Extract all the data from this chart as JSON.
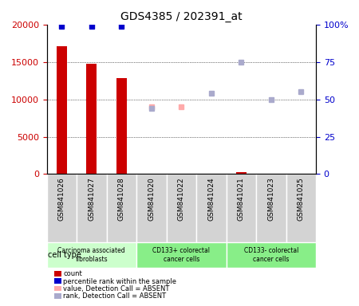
{
  "title": "GDS4385 / 202391_at",
  "samples": [
    "GSM841026",
    "GSM841027",
    "GSM841028",
    "GSM841020",
    "GSM841022",
    "GSM841024",
    "GSM841021",
    "GSM841023",
    "GSM841025"
  ],
  "count_values": [
    17100,
    14800,
    12800,
    50,
    80,
    60,
    250,
    70,
    60
  ],
  "percentile_values": [
    99,
    99,
    99,
    null,
    null,
    null,
    null,
    null,
    null
  ],
  "value_absent": [
    null,
    null,
    null,
    9000,
    9000,
    null,
    null,
    null,
    null
  ],
  "rank_absent": [
    null,
    null,
    null,
    44,
    null,
    54,
    75,
    50,
    55
  ],
  "count_colors": [
    "#cc0000",
    "#cc0000",
    "#cc0000",
    "#cc0000",
    "#cc0000",
    "#cc0000",
    "#cc0000",
    "#cc0000",
    "#cc0000"
  ],
  "percentile_color": "#0000cc",
  "value_absent_color": "#ffaaaa",
  "rank_absent_color": "#aaaacc",
  "bar_color": "#cc0000",
  "ylim_left": [
    0,
    20000
  ],
  "ylim_right": [
    0,
    100
  ],
  "yticks_left": [
    0,
    5000,
    10000,
    15000,
    20000
  ],
  "yticks_right": [
    0,
    25,
    50,
    75,
    100
  ],
  "ytick_labels_left": [
    "0",
    "5000",
    "10000",
    "15000",
    "20000"
  ],
  "ytick_labels_right": [
    "0",
    "25",
    "50",
    "75",
    "100%"
  ],
  "cell_groups": [
    {
      "label": "Carcinoma associated\nfibroblasts",
      "start": 0,
      "end": 3,
      "color": "#ccffcc"
    },
    {
      "label": "CD133+ colorectal\ncancer cells",
      "start": 3,
      "end": 6,
      "color": "#88ff88"
    },
    {
      "label": "CD133- colorectal\ncancer cells",
      "start": 6,
      "end": 9,
      "color": "#88ff88"
    }
  ],
  "legend_items": [
    {
      "label": "count",
      "color": "#cc0000"
    },
    {
      "label": "percentile rank within the sample",
      "color": "#0000cc"
    },
    {
      "label": "value, Detection Call = ABSENT",
      "color": "#ffaaaa"
    },
    {
      "label": "rank, Detection Call = ABSENT",
      "color": "#aaaacc"
    }
  ],
  "cell_type_label": "cell type",
  "xlabel_color": "#cc0000",
  "ylabel_left_color": "#cc0000",
  "ylabel_right_color": "#0000cc"
}
